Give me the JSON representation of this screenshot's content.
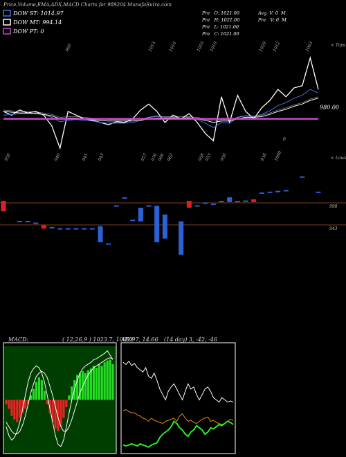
{
  "chart_data": [
    {
      "type": "line",
      "title": "Price,Volume,EMA,ADX,MACD Charts for 989204 MunafaSutra.com",
      "info_left": [
        "Pre   O: 1021.00",
        "Pre   H: 1021.00",
        "Pre   L: 1021.00",
        "Pre   C: 1021.00"
      ],
      "info_right": [
        "Avg  V: 0  M",
        "Pre   V: 0  M"
      ],
      "ylim": [
        925,
        1085
      ],
      "series": [
        {
          "color": "#ffffff",
          "values": [
            990,
            985,
            992,
            988,
            990,
            985,
            970,
            940,
            990,
            985,
            980,
            978,
            975,
            972,
            976,
            975,
            980,
            992,
            1000,
            990,
            975,
            985,
            980,
            987,
            975,
            960,
            950,
            1010,
            975,
            1012,
            990,
            980,
            995,
            1005,
            1020,
            1010,
            1022,
            1025,
            1063,
            1020
          ]
        },
        {
          "name": "DOW ST: 1014.97",
          "color": "#3a78e0",
          "values": [
            985,
            986,
            987,
            987,
            988,
            986,
            982,
            976,
            978,
            979,
            978,
            977,
            975,
            974,
            974,
            974,
            975,
            978,
            982,
            984,
            982,
            982,
            981,
            982,
            979,
            974,
            968,
            975,
            974,
            982,
            984,
            983,
            986,
            991,
            998,
            1002,
            1008,
            1012,
            1020,
            1015
          ]
        },
        {
          "name": "DOW MT: 994.14",
          "color": "#ffffff",
          "values": [
            990,
            989,
            988,
            988,
            987,
            986,
            984,
            980,
            981,
            981,
            980,
            979,
            978,
            977,
            977,
            977,
            977,
            978,
            980,
            981,
            981,
            981,
            981,
            981,
            980,
            978,
            975,
            977,
            977,
            980,
            982,
            982,
            983,
            986,
            990,
            993,
            997,
            1000,
            1005,
            1008
          ]
        },
        {
          "name": "DOW PT: 0",
          "color": "#cc44cc",
          "level": 980,
          "level_label": "980.00"
        }
      ],
      "top_labels": [
        "960",
        "1013",
        "1010",
        "1010",
        "1010",
        "1029",
        "1012",
        "1063"
      ],
      "bottom_labels": [
        "950",
        "940",
        "945",
        "943",
        "957",
        "976",
        "966",
        "962",
        "958",
        "953",
        "950",
        "938",
        "1000"
      ],
      "annotations": [
        "< Tops",
        "< Lows",
        "0"
      ]
    },
    {
      "type": "candle",
      "ylim": [
        848,
        1098
      ],
      "up_color": "#2a62d6",
      "down_color": "#e02020",
      "open": [
        1003,
        null,
        952,
        952,
        948,
        943,
        937,
        934,
        934,
        934,
        934,
        934,
        900,
        896,
        991,
        1011,
        955,
        952,
        991,
        900,
        909,
        null,
        869,
        1003,
        991,
        998,
        995,
        1002,
        1000,
        1002,
        1003,
        1007,
        1023,
        1025,
        1027,
        1029,
        null,
        1063,
        null,
        1025
      ],
      "close": [
        977,
        null,
        953,
        953,
        949,
        934,
        938,
        935,
        935,
        935,
        935,
        935,
        940,
        897,
        992,
        1012,
        956,
        986,
        992,
        991,
        969,
        null,
        952,
        986,
        992,
        999,
        996,
        1003,
        1012,
        1003,
        1004,
        1000,
        1024,
        1026,
        1028,
        1030,
        null,
        1064,
        null,
        1026
      ],
      "ref_lines": [
        {
          "value": 998,
          "label": "998"
        },
        {
          "value": 943,
          "label": "943"
        }
      ],
      "ref_color": "#7a4020"
    },
    {
      "type": "macd",
      "title": "MACD:",
      "subtitle": "( 12,26,9 ) 1023.7, 1009.97, 14.66",
      "background": "#003d00",
      "ylim": [
        -60,
        60
      ],
      "pos_color": "#22dd22",
      "neg_color": "#ee2222",
      "histogram": [
        -5,
        -10,
        -18,
        -22,
        -25,
        -20,
        -15,
        -10,
        -5,
        5,
        12,
        20,
        25,
        22,
        10,
        -5,
        -15,
        -25,
        -32,
        -35,
        -30,
        -20,
        -8,
        5,
        15,
        22,
        28,
        30,
        32,
        30,
        33,
        35,
        38,
        36,
        40,
        38,
        42,
        44,
        45,
        40
      ],
      "series": [
        {
          "color": "#ffffff",
          "values": [
            -30,
            -40,
            -45,
            -42,
            -35,
            -25,
            -10,
            5,
            20,
            30,
            35,
            38,
            36,
            30,
            20,
            5,
            -10,
            -25,
            -40,
            -50,
            -52,
            -45,
            -30,
            -15,
            0,
            12,
            22,
            30,
            35,
            38,
            40,
            42,
            45,
            46,
            48,
            50,
            52,
            55,
            50,
            45
          ]
        },
        {
          "color": "#ffffff",
          "values": [
            -25,
            -30,
            -35,
            -38,
            -38,
            -35,
            -28,
            -18,
            -5,
            8,
            18,
            26,
            30,
            32,
            30,
            25,
            15,
            5,
            -8,
            -20,
            -30,
            -35,
            -35,
            -30,
            -22,
            -12,
            -2,
            8,
            15,
            22,
            28,
            32,
            36,
            38,
            40,
            42,
            44,
            46,
            47,
            46
          ]
        }
      ]
    },
    {
      "type": "adx",
      "title": "ADX",
      "subtitle": "(14 day) 3, -42, -46",
      "background": "#000000",
      "ylim": [
        0,
        100
      ],
      "series": [
        {
          "color": "#ffffff",
          "values": [
            85,
            83,
            86,
            82,
            84,
            80,
            78,
            76,
            80,
            72,
            70,
            75,
            68,
            60,
            55,
            50,
            58,
            62,
            65,
            60,
            55,
            50,
            58,
            65,
            60,
            62,
            55,
            50,
            55,
            60,
            62,
            58,
            52,
            50,
            48,
            52,
            50,
            48,
            49,
            48
          ]
        },
        {
          "color": "#d98b1a",
          "values": [
            40,
            41,
            39,
            38,
            38,
            36,
            35,
            33,
            32,
            30,
            33,
            31,
            30,
            29,
            28,
            30,
            31,
            32,
            33,
            30,
            35,
            37,
            33,
            30,
            31,
            29,
            28,
            30,
            32,
            33,
            34,
            30,
            31,
            29,
            28,
            27,
            28,
            30,
            32,
            31
          ]
        },
        {
          "color": "#22ee22",
          "values": [
            8,
            7,
            8,
            9,
            8,
            7,
            9,
            8,
            7,
            6,
            8,
            9,
            10,
            15,
            18,
            20,
            22,
            25,
            30,
            28,
            24,
            22,
            18,
            16,
            20,
            22,
            26,
            24,
            22,
            18,
            20,
            24,
            23,
            25,
            27,
            26,
            28,
            30,
            29,
            27
          ]
        }
      ]
    }
  ]
}
